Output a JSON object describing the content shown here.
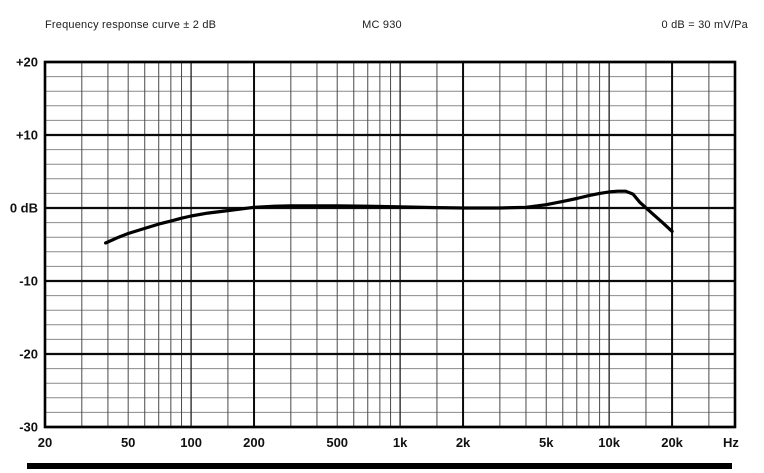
{
  "header": {
    "left_label": "Frequency response curve ± 2 dB",
    "model_label": "MC 930",
    "right_label": "0 dB = 30 mV/Pa"
  },
  "colors": {
    "curve": "#000000",
    "grid_major": "#0a0a0a",
    "grid_mid": "#2e2e2e",
    "grid_minor_v": "#4a4a4a",
    "grid_minor_h": "#8a8a8a",
    "frame": "#000000",
    "label_text": "#111111"
  },
  "chart_data": {
    "type": "line",
    "title": "Frequency response curve ± 2 dB",
    "xlabel": "Hz",
    "ylabel": "dB",
    "x_scale": "log",
    "x_range_hz": [
      20,
      40000
    ],
    "y_range_db": [
      -30,
      20
    ],
    "y_major_step_db": 10,
    "y_minor_step_db": 2,
    "x_decade_multipliers": [
      1,
      1.5,
      2,
      3,
      4,
      5,
      6,
      7,
      8,
      9
    ],
    "x_major_hz": [
      20,
      200,
      2000,
      20000,
      40000
    ],
    "x_tick_labels": [
      {
        "hz": 20,
        "label": "20"
      },
      {
        "hz": 50,
        "label": "50"
      },
      {
        "hz": 100,
        "label": "100"
      },
      {
        "hz": 200,
        "label": "200"
      },
      {
        "hz": 500,
        "label": "500"
      },
      {
        "hz": 1000,
        "label": "1k"
      },
      {
        "hz": 2000,
        "label": "2k"
      },
      {
        "hz": 5000,
        "label": "5k"
      },
      {
        "hz": 10000,
        "label": "10k"
      },
      {
        "hz": 20000,
        "label": "20k"
      }
    ],
    "x_unit_label": "Hz",
    "y_tick_labels": [
      {
        "db": 20,
        "label": "+20"
      },
      {
        "db": 10,
        "label": "+10"
      },
      {
        "db": 0,
        "label": "0 dB"
      },
      {
        "db": -10,
        "label": "-10"
      },
      {
        "db": -20,
        "label": "-20"
      },
      {
        "db": -30,
        "label": "-30"
      }
    ],
    "series": [
      {
        "name": "MC 930 frequency response",
        "points": [
          [
            39,
            -4.8
          ],
          [
            45,
            -4.0
          ],
          [
            50,
            -3.5
          ],
          [
            60,
            -2.8
          ],
          [
            70,
            -2.2
          ],
          [
            80,
            -1.8
          ],
          [
            90,
            -1.4
          ],
          [
            100,
            -1.1
          ],
          [
            120,
            -0.7
          ],
          [
            150,
            -0.35
          ],
          [
            200,
            0.1
          ],
          [
            250,
            0.25
          ],
          [
            300,
            0.3
          ],
          [
            400,
            0.3
          ],
          [
            500,
            0.3
          ],
          [
            700,
            0.25
          ],
          [
            1000,
            0.15
          ],
          [
            1500,
            0.05
          ],
          [
            2000,
            0.0
          ],
          [
            3000,
            0.0
          ],
          [
            4000,
            0.1
          ],
          [
            5000,
            0.45
          ],
          [
            6000,
            0.9
          ],
          [
            7000,
            1.3
          ],
          [
            8000,
            1.7
          ],
          [
            9000,
            2.0
          ],
          [
            10000,
            2.2
          ],
          [
            11000,
            2.3
          ],
          [
            12000,
            2.3
          ],
          [
            13000,
            1.9
          ],
          [
            14000,
            0.8
          ],
          [
            16000,
            -0.7
          ],
          [
            18000,
            -2.0
          ],
          [
            20000,
            -3.2
          ]
        ]
      }
    ]
  }
}
